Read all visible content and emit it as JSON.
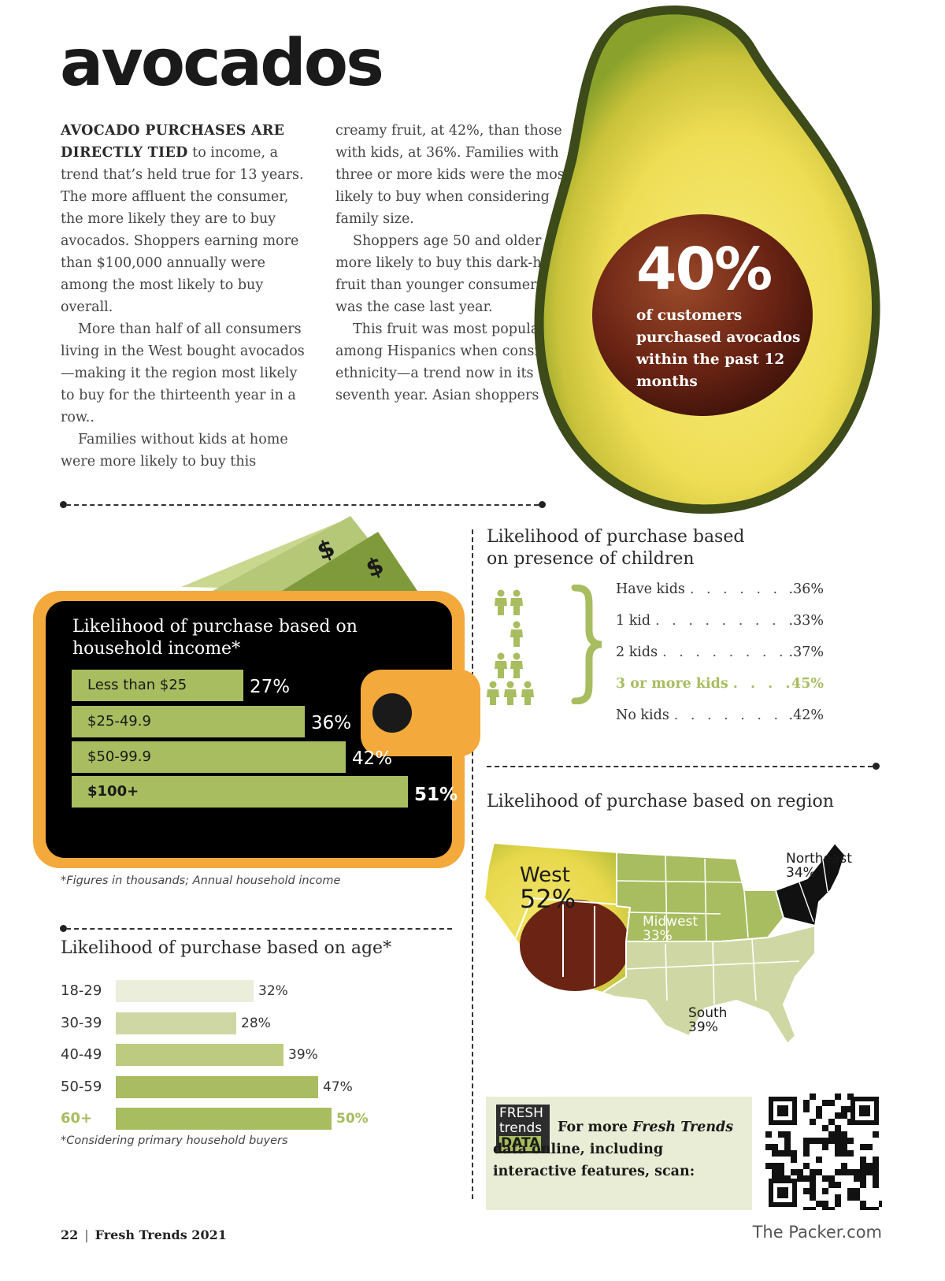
{
  "title": "avocados",
  "article": {
    "col1": {
      "lead": "Avocado purchases are directly tied",
      "p1_rest": " to income, a trend that’s held true for 13 years. The more affluent the consumer, the more likely they are to buy avocados. Shoppers earning more than $100,000 annually were among the most likely to buy overall.",
      "p2": "More than half of all consumers living in the West bought avocados—making it the region most likely to buy for the thirteenth year in a row..",
      "p3": "Families without kids at home were more likely to buy this"
    },
    "col2": {
      "p1": "creamy fruit, at 42%, than those with kids, at 36%. Families with three or more kids were the most likely to buy when considering family size.",
      "p2": "Shoppers age 50 and older were more likely to buy this dark-hued fruit than younger consumers, as was the case last year.",
      "p3": "This fruit was most popular among Hispanics when considering ethnicity—a trend now in its seventh year. Asian shoppers"
    }
  },
  "headline_stat": {
    "value": "40%",
    "text": "of customers purchased avocados  within the past 12 months"
  },
  "income": {
    "title": "Likelihood of purchase based on household income*",
    "footnote": "*Figures in thousands; Annual household income",
    "bars": [
      {
        "label": "Less than $25",
        "value": "27%",
        "pct": 27
      },
      {
        "label": "$25-49.9",
        "value": "36%",
        "pct": 36
      },
      {
        "label": "$50-99.9",
        "value": "42%",
        "pct": 42
      },
      {
        "label": "$100+",
        "value": "51%",
        "pct": 51
      }
    ]
  },
  "children": {
    "title": "Likelihood of purchase based on presence of children",
    "rows": [
      {
        "label": "Have kids",
        "value": ".36%",
        "highlight": false
      },
      {
        "label": "1 kid",
        "value": ".33%",
        "highlight": false
      },
      {
        "label": "2 kids",
        "value": ".37%",
        "highlight": false
      },
      {
        "label": "3 or more kids",
        "value": "45%",
        "highlight": true
      },
      {
        "label": "No kids",
        "value": ".42%",
        "highlight": false
      }
    ]
  },
  "age": {
    "title": "Likelihood of purchase based on age*",
    "footnote": "*Considering primary household buyers",
    "rows": [
      {
        "label": "18-29",
        "value": "32%",
        "pct": 32,
        "color": "#eceedc"
      },
      {
        "label": "30-39",
        "value": "28%",
        "pct": 28,
        "color": "#cfd8a4"
      },
      {
        "label": "40-49",
        "value": "39%",
        "pct": 39,
        "color": "#bccb7f"
      },
      {
        "label": "50-59",
        "value": "47%",
        "pct": 47,
        "color": "#a9bc62"
      },
      {
        "label": "60+",
        "value": "50%",
        "pct": 50,
        "color": "#a7bd5f"
      }
    ]
  },
  "region": {
    "title": "Likelihood of purchase based on region",
    "west": {
      "name": "West",
      "value": "52%"
    },
    "midwest": {
      "name": "Midwest",
      "value": "33%"
    },
    "south": {
      "name": "South",
      "value": "39%"
    },
    "northeast": {
      "name": "Northeast",
      "value": "34%"
    }
  },
  "promo": {
    "logo_line1": "FRESH",
    "logo_line2": "trends",
    "logo_line3": "DATA",
    "text_a": "For more ",
    "text_em": "Fresh Trends",
    "text_b": " data online, including interactive features, scan:"
  },
  "footer": {
    "page": "22",
    "pub": "Fresh Trends 2021",
    "site": "The Packer.com"
  },
  "colors": {
    "green": "#a7bd5f",
    "orange": "#f3a93b",
    "black": "#000000"
  }
}
